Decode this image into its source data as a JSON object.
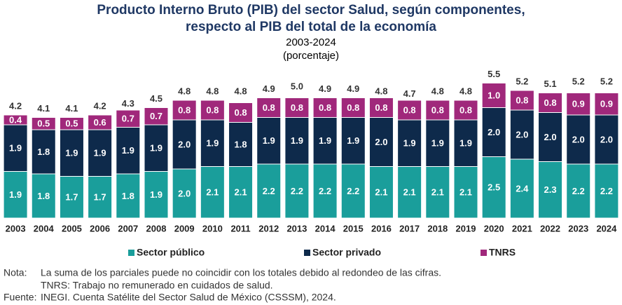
{
  "chart_data": {
    "type": "stacked-bar",
    "title": [
      "Producto Interno Bruto (PIB) del sector Salud, según componentes,",
      "respecto al PIB del total de la economía"
    ],
    "subtitle": [
      "2003-2024",
      "(porcentaje)"
    ],
    "categories": [
      "2003",
      "2004",
      "2005",
      "2006",
      "2007",
      "2008",
      "2009",
      "2010",
      "2011",
      "2012",
      "2013",
      "2014",
      "2015",
      "2016",
      "2017",
      "2018",
      "2019",
      "2020",
      "2021",
      "2022",
      "2023",
      "2024"
    ],
    "series": [
      {
        "name": "Sector público",
        "color": "#1a9e9b",
        "values": [
          1.9,
          1.8,
          1.7,
          1.7,
          1.8,
          1.9,
          2.0,
          2.1,
          2.1,
          2.2,
          2.2,
          2.2,
          2.2,
          2.1,
          2.1,
          2.1,
          2.1,
          2.5,
          2.4,
          2.3,
          2.2,
          2.2
        ],
        "value_labels": [
          "1.9",
          "1.8",
          "1.7",
          "1.7",
          "1.8",
          "1.9",
          "2.0",
          "2.1",
          "2.1",
          "2.2",
          "2.2",
          "2.2",
          "2.2",
          "2.1",
          "2.1",
          "2.1",
          "2.1",
          "2.5",
          "2.4",
          "2.3",
          "2.2",
          "2.2"
        ]
      },
      {
        "name": "Sector privado",
        "color": "#0e2a4b",
        "values": [
          1.9,
          1.8,
          1.9,
          1.9,
          1.9,
          1.9,
          2.0,
          1.9,
          1.8,
          1.9,
          1.9,
          1.9,
          1.9,
          2.0,
          1.9,
          1.9,
          1.9,
          2.0,
          2.0,
          2.0,
          2.0,
          2.0
        ],
        "value_labels": [
          "1.9",
          "1.8",
          "1.9",
          "1.9",
          "1.9",
          "1.9",
          "2.0",
          "1.9",
          "1.8",
          "1.9",
          "1.9",
          "1.9",
          "1.9",
          "2.0",
          "1.9",
          "1.9",
          "1.9",
          "2.0",
          "2.0",
          "2.0",
          "2.0",
          "2.0"
        ]
      },
      {
        "name": "TNRS",
        "color": "#a0287b",
        "values": [
          0.4,
          0.5,
          0.5,
          0.6,
          0.7,
          0.7,
          0.8,
          0.8,
          0.8,
          0.8,
          0.8,
          0.8,
          0.8,
          0.8,
          0.8,
          0.8,
          0.8,
          1.0,
          0.8,
          0.8,
          0.9,
          0.9
        ],
        "value_labels": [
          "0.4",
          "0.5",
          "0.5",
          "0.6",
          "0.7",
          "0.7",
          "0.8",
          "0.8",
          "0.8",
          "0.8",
          "0.8",
          "0.8",
          "0.8",
          "0.8",
          "0.8",
          "0.8",
          "0.8",
          "1.0",
          "0.8",
          "0.8",
          "0.9",
          "0.9"
        ]
      }
    ],
    "totals": [
      4.2,
      4.1,
      4.1,
      4.2,
      4.3,
      4.5,
      4.8,
      4.8,
      4.8,
      4.9,
      5.0,
      4.9,
      4.9,
      4.8,
      4.7,
      4.8,
      4.8,
      5.5,
      5.2,
      5.1,
      5.2,
      5.2
    ],
    "total_labels": [
      "4.2",
      "4.1",
      "4.1",
      "4.2",
      "4.3",
      "4.5",
      "4.8",
      "4.8",
      "4.8",
      "4.9",
      "5.0",
      "4.9",
      "4.9",
      "4.8",
      "4.7",
      "4.8",
      "4.8",
      "5.5",
      "5.2",
      "5.1",
      "5.2",
      "5.2"
    ],
    "notes": {
      "note_label": "Nota:",
      "note": "La suma de los parciales puede no coincidir con los totales debido al redondeo de las cifras.",
      "tnrs_note": "TNRS: Trabajo no remunerado en cuidados de salud.",
      "source_label": "Fuente:",
      "source": "INEGI. Cuenta Satélite del Sector Salud de México (CSSSM), 2024."
    }
  }
}
